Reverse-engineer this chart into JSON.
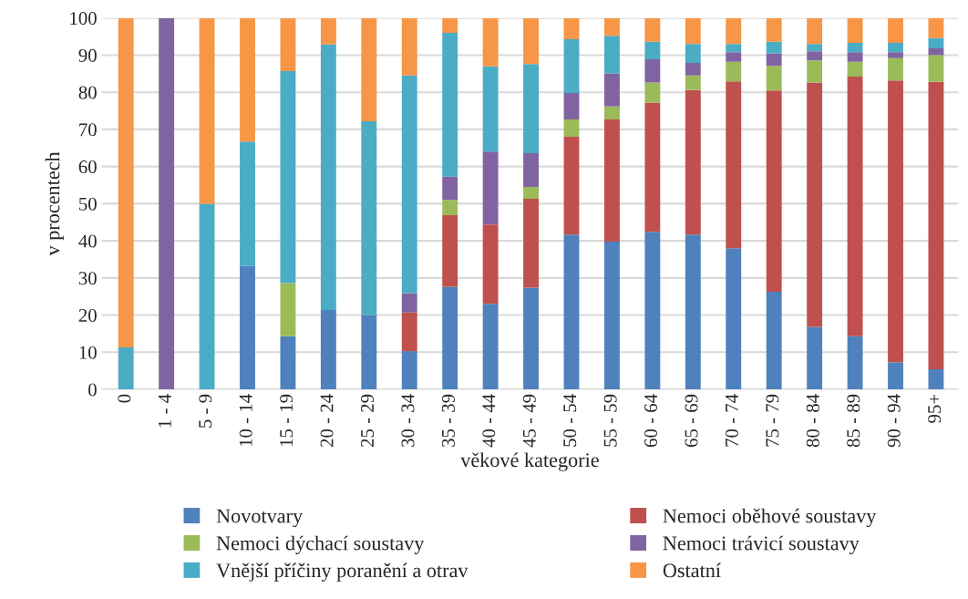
{
  "chart_data": {
    "type": "bar",
    "stacked": true,
    "xlabel": "věkové kategorie",
    "ylabel": "v procentech",
    "categories": [
      "0",
      "1 - 4",
      "5 - 9",
      "10 - 14",
      "15 - 19",
      "20 - 24",
      "25 - 29",
      "30 - 34",
      "35 - 39",
      "40 - 44",
      "45 - 49",
      "50 - 54",
      "55 - 59",
      "60 - 64",
      "65 - 69",
      "70 - 74",
      "75 - 79",
      "80 - 84",
      "85 - 89",
      "90 - 94",
      "95+"
    ],
    "series": [
      {
        "name": "Novotvary",
        "color": "#4f81bd",
        "values": [
          0,
          0,
          0,
          33.3,
          14.3,
          21.4,
          20,
          10.3,
          27.6,
          23,
          27.4,
          41.7,
          39.8,
          42.4,
          41.7,
          38,
          26.3,
          16.8,
          14.3,
          7.3,
          5.4
        ]
      },
      {
        "name": "Nemoci oběhové soustavy",
        "color": "#c0504d",
        "values": [
          0,
          0,
          0,
          0,
          0,
          0,
          0,
          10.4,
          19.3,
          21.4,
          23.9,
          26.3,
          32.9,
          34.8,
          38.9,
          44.9,
          54.2,
          65.8,
          69.9,
          75.9,
          77.4
        ]
      },
      {
        "name": "Nemoci dýchací soustavy",
        "color": "#9bbb59",
        "values": [
          0,
          0,
          0,
          0,
          14.3,
          0,
          0,
          0,
          4.1,
          0,
          3.2,
          4.7,
          3.5,
          5.4,
          3.9,
          5.3,
          6.6,
          6,
          4,
          6,
          7.2
        ]
      },
      {
        "name": "Nemoci trávicí soustavy",
        "color": "#8064a2",
        "values": [
          0,
          100,
          0,
          0,
          0,
          0,
          0,
          5.2,
          6.3,
          19.6,
          9.1,
          7.1,
          8.9,
          6.3,
          3.4,
          2.6,
          3.3,
          2.4,
          2.6,
          1.6,
          1.8
        ]
      },
      {
        "name": "Vnější příčiny poranění a otrav",
        "color": "#4bacc6",
        "values": [
          11.3,
          0,
          50,
          33.4,
          57.1,
          71.5,
          52.2,
          58.6,
          38.7,
          23,
          24,
          14.5,
          10.1,
          4.7,
          5.1,
          2.2,
          3.2,
          2,
          2.5,
          2.5,
          2.8
        ]
      },
      {
        "name": "Ostatní",
        "color": "#f79646",
        "values": [
          88.7,
          0,
          50,
          33.3,
          14.3,
          7.1,
          27.8,
          15.5,
          4,
          13,
          12.4,
          5.7,
          4.8,
          6.4,
          7,
          7,
          6.4,
          7,
          6.7,
          6.7,
          5.4
        ]
      }
    ],
    "ylim": [
      0,
      100
    ],
    "yticks": [
      0,
      10,
      20,
      30,
      40,
      50,
      60,
      70,
      80,
      90,
      100
    ],
    "grid": "y",
    "legend": "bottom"
  }
}
